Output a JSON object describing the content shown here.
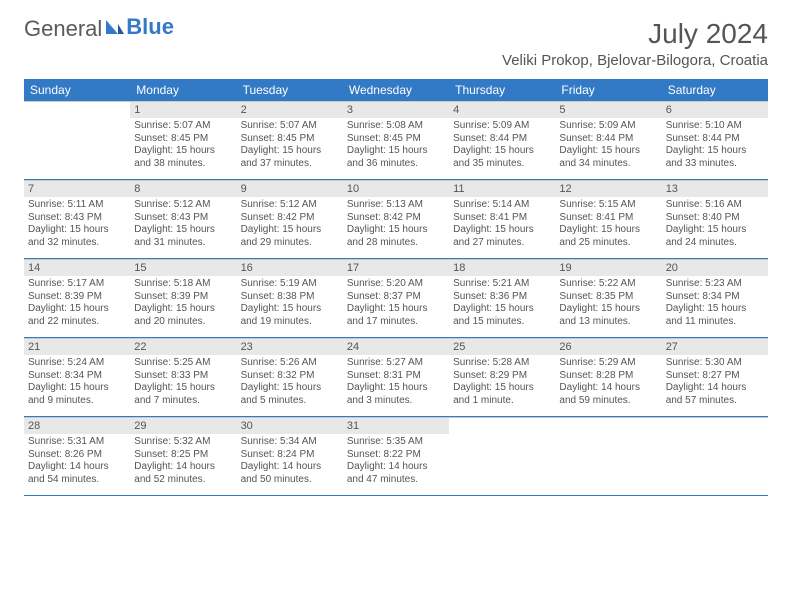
{
  "logo": {
    "word1": "General",
    "word2": "Blue"
  },
  "title": "July 2024",
  "location": "Veliki Prokop, Bjelovar-Bilogora, Croatia",
  "weekdays": [
    "Sunday",
    "Monday",
    "Tuesday",
    "Wednesday",
    "Thursday",
    "Friday",
    "Saturday"
  ],
  "colors": {
    "header_bg": "#3279c6",
    "header_text": "#ffffff",
    "shade_bg": "#e8e8e8",
    "text": "#555555",
    "rule": "#3279c6"
  },
  "weeks": [
    [
      {
        "n": "",
        "sunrise": "",
        "sunset": "",
        "d1": "",
        "d2": ""
      },
      {
        "n": "1",
        "sunrise": "Sunrise: 5:07 AM",
        "sunset": "Sunset: 8:45 PM",
        "d1": "Daylight: 15 hours",
        "d2": "and 38 minutes."
      },
      {
        "n": "2",
        "sunrise": "Sunrise: 5:07 AM",
        "sunset": "Sunset: 8:45 PM",
        "d1": "Daylight: 15 hours",
        "d2": "and 37 minutes."
      },
      {
        "n": "3",
        "sunrise": "Sunrise: 5:08 AM",
        "sunset": "Sunset: 8:45 PM",
        "d1": "Daylight: 15 hours",
        "d2": "and 36 minutes."
      },
      {
        "n": "4",
        "sunrise": "Sunrise: 5:09 AM",
        "sunset": "Sunset: 8:44 PM",
        "d1": "Daylight: 15 hours",
        "d2": "and 35 minutes."
      },
      {
        "n": "5",
        "sunrise": "Sunrise: 5:09 AM",
        "sunset": "Sunset: 8:44 PM",
        "d1": "Daylight: 15 hours",
        "d2": "and 34 minutes."
      },
      {
        "n": "6",
        "sunrise": "Sunrise: 5:10 AM",
        "sunset": "Sunset: 8:44 PM",
        "d1": "Daylight: 15 hours",
        "d2": "and 33 minutes."
      }
    ],
    [
      {
        "n": "7",
        "sunrise": "Sunrise: 5:11 AM",
        "sunset": "Sunset: 8:43 PM",
        "d1": "Daylight: 15 hours",
        "d2": "and 32 minutes."
      },
      {
        "n": "8",
        "sunrise": "Sunrise: 5:12 AM",
        "sunset": "Sunset: 8:43 PM",
        "d1": "Daylight: 15 hours",
        "d2": "and 31 minutes."
      },
      {
        "n": "9",
        "sunrise": "Sunrise: 5:12 AM",
        "sunset": "Sunset: 8:42 PM",
        "d1": "Daylight: 15 hours",
        "d2": "and 29 minutes."
      },
      {
        "n": "10",
        "sunrise": "Sunrise: 5:13 AM",
        "sunset": "Sunset: 8:42 PM",
        "d1": "Daylight: 15 hours",
        "d2": "and 28 minutes."
      },
      {
        "n": "11",
        "sunrise": "Sunrise: 5:14 AM",
        "sunset": "Sunset: 8:41 PM",
        "d1": "Daylight: 15 hours",
        "d2": "and 27 minutes."
      },
      {
        "n": "12",
        "sunrise": "Sunrise: 5:15 AM",
        "sunset": "Sunset: 8:41 PM",
        "d1": "Daylight: 15 hours",
        "d2": "and 25 minutes."
      },
      {
        "n": "13",
        "sunrise": "Sunrise: 5:16 AM",
        "sunset": "Sunset: 8:40 PM",
        "d1": "Daylight: 15 hours",
        "d2": "and 24 minutes."
      }
    ],
    [
      {
        "n": "14",
        "sunrise": "Sunrise: 5:17 AM",
        "sunset": "Sunset: 8:39 PM",
        "d1": "Daylight: 15 hours",
        "d2": "and 22 minutes."
      },
      {
        "n": "15",
        "sunrise": "Sunrise: 5:18 AM",
        "sunset": "Sunset: 8:39 PM",
        "d1": "Daylight: 15 hours",
        "d2": "and 20 minutes."
      },
      {
        "n": "16",
        "sunrise": "Sunrise: 5:19 AM",
        "sunset": "Sunset: 8:38 PM",
        "d1": "Daylight: 15 hours",
        "d2": "and 19 minutes."
      },
      {
        "n": "17",
        "sunrise": "Sunrise: 5:20 AM",
        "sunset": "Sunset: 8:37 PM",
        "d1": "Daylight: 15 hours",
        "d2": "and 17 minutes."
      },
      {
        "n": "18",
        "sunrise": "Sunrise: 5:21 AM",
        "sunset": "Sunset: 8:36 PM",
        "d1": "Daylight: 15 hours",
        "d2": "and 15 minutes."
      },
      {
        "n": "19",
        "sunrise": "Sunrise: 5:22 AM",
        "sunset": "Sunset: 8:35 PM",
        "d1": "Daylight: 15 hours",
        "d2": "and 13 minutes."
      },
      {
        "n": "20",
        "sunrise": "Sunrise: 5:23 AM",
        "sunset": "Sunset: 8:34 PM",
        "d1": "Daylight: 15 hours",
        "d2": "and 11 minutes."
      }
    ],
    [
      {
        "n": "21",
        "sunrise": "Sunrise: 5:24 AM",
        "sunset": "Sunset: 8:34 PM",
        "d1": "Daylight: 15 hours",
        "d2": "and 9 minutes."
      },
      {
        "n": "22",
        "sunrise": "Sunrise: 5:25 AM",
        "sunset": "Sunset: 8:33 PM",
        "d1": "Daylight: 15 hours",
        "d2": "and 7 minutes."
      },
      {
        "n": "23",
        "sunrise": "Sunrise: 5:26 AM",
        "sunset": "Sunset: 8:32 PM",
        "d1": "Daylight: 15 hours",
        "d2": "and 5 minutes."
      },
      {
        "n": "24",
        "sunrise": "Sunrise: 5:27 AM",
        "sunset": "Sunset: 8:31 PM",
        "d1": "Daylight: 15 hours",
        "d2": "and 3 minutes."
      },
      {
        "n": "25",
        "sunrise": "Sunrise: 5:28 AM",
        "sunset": "Sunset: 8:29 PM",
        "d1": "Daylight: 15 hours",
        "d2": "and 1 minute."
      },
      {
        "n": "26",
        "sunrise": "Sunrise: 5:29 AM",
        "sunset": "Sunset: 8:28 PM",
        "d1": "Daylight: 14 hours",
        "d2": "and 59 minutes."
      },
      {
        "n": "27",
        "sunrise": "Sunrise: 5:30 AM",
        "sunset": "Sunset: 8:27 PM",
        "d1": "Daylight: 14 hours",
        "d2": "and 57 minutes."
      }
    ],
    [
      {
        "n": "28",
        "sunrise": "Sunrise: 5:31 AM",
        "sunset": "Sunset: 8:26 PM",
        "d1": "Daylight: 14 hours",
        "d2": "and 54 minutes."
      },
      {
        "n": "29",
        "sunrise": "Sunrise: 5:32 AM",
        "sunset": "Sunset: 8:25 PM",
        "d1": "Daylight: 14 hours",
        "d2": "and 52 minutes."
      },
      {
        "n": "30",
        "sunrise": "Sunrise: 5:34 AM",
        "sunset": "Sunset: 8:24 PM",
        "d1": "Daylight: 14 hours",
        "d2": "and 50 minutes."
      },
      {
        "n": "31",
        "sunrise": "Sunrise: 5:35 AM",
        "sunset": "Sunset: 8:22 PM",
        "d1": "Daylight: 14 hours",
        "d2": "and 47 minutes."
      },
      {
        "n": "",
        "sunrise": "",
        "sunset": "",
        "d1": "",
        "d2": ""
      },
      {
        "n": "",
        "sunrise": "",
        "sunset": "",
        "d1": "",
        "d2": ""
      },
      {
        "n": "",
        "sunrise": "",
        "sunset": "",
        "d1": "",
        "d2": ""
      }
    ]
  ]
}
